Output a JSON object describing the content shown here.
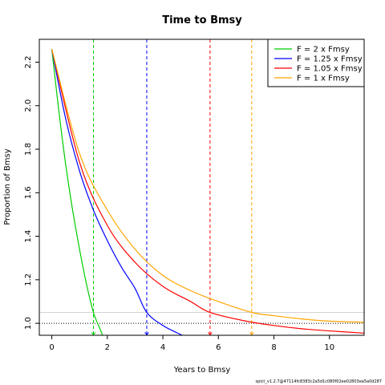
{
  "chart_data": {
    "type": "line",
    "title": "Time to Bmsy",
    "xlabel": "Years to Bmsy",
    "ylabel": "Proportion of Bmsy",
    "xlim": [
      -0.45,
      11.25
    ],
    "ylim": [
      0.945,
      2.305
    ],
    "x_ticks": [
      0,
      2,
      4,
      6,
      8,
      10
    ],
    "y_ticks": [
      1.0,
      1.2,
      1.4,
      1.6,
      1.8,
      2.0,
      2.2
    ],
    "y_tick_labels": [
      "1.0",
      "1.2",
      "1.4",
      "1.6",
      "1.8",
      "2.0",
      "2.2"
    ],
    "legend_position": "top-right",
    "start_value": 2.26,
    "reference_lines": {
      "dotted_y": 1.0,
      "gray_y": 1.05,
      "gray_color": "#d3d3d3"
    },
    "series": [
      {
        "name": "F = 2 x Fmsy",
        "color": "#00cd00",
        "x": [
          0,
          0.25,
          0.5,
          0.75,
          1.0,
          1.25,
          1.5,
          1.75,
          1.83
        ],
        "y": [
          2.26,
          1.98,
          1.73,
          1.52,
          1.34,
          1.18,
          1.05,
          0.97,
          0.945
        ],
        "marker_x": 1.5
      },
      {
        "name": "F = 1.25 x Fmsy",
        "color": "#0000ff",
        "x": [
          0,
          0.5,
          1.0,
          1.5,
          2.0,
          2.5,
          3.0,
          3.42,
          4.0,
          4.5,
          4.7
        ],
        "y": [
          2.26,
          1.94,
          1.7,
          1.52,
          1.38,
          1.26,
          1.16,
          1.05,
          0.99,
          0.957,
          0.945
        ],
        "marker_x": 3.42
      },
      {
        "name": "F = 1.05 x Fmsy",
        "color": "#ff0000",
        "x": [
          0,
          1,
          2,
          3,
          4,
          5,
          5.7,
          7,
          8,
          9,
          10,
          11.25
        ],
        "y": [
          2.26,
          1.74,
          1.45,
          1.28,
          1.17,
          1.1,
          1.05,
          1.01,
          0.99,
          0.975,
          0.965,
          0.955
        ],
        "marker_x": 5.7
      },
      {
        "name": "F = 1 x Fmsy",
        "color": "#ffa500",
        "x": [
          0,
          1,
          2,
          3,
          4,
          5,
          6,
          7.2,
          8,
          9,
          10,
          11.25
        ],
        "y": [
          2.26,
          1.78,
          1.52,
          1.34,
          1.22,
          1.15,
          1.1,
          1.05,
          1.035,
          1.02,
          1.01,
          1.005
        ],
        "marker_x": 7.2
      }
    ]
  },
  "footer_text": "spict_v1.2.7@47114fc8383c2a5d1c080f02ee02803ea5a0d287"
}
